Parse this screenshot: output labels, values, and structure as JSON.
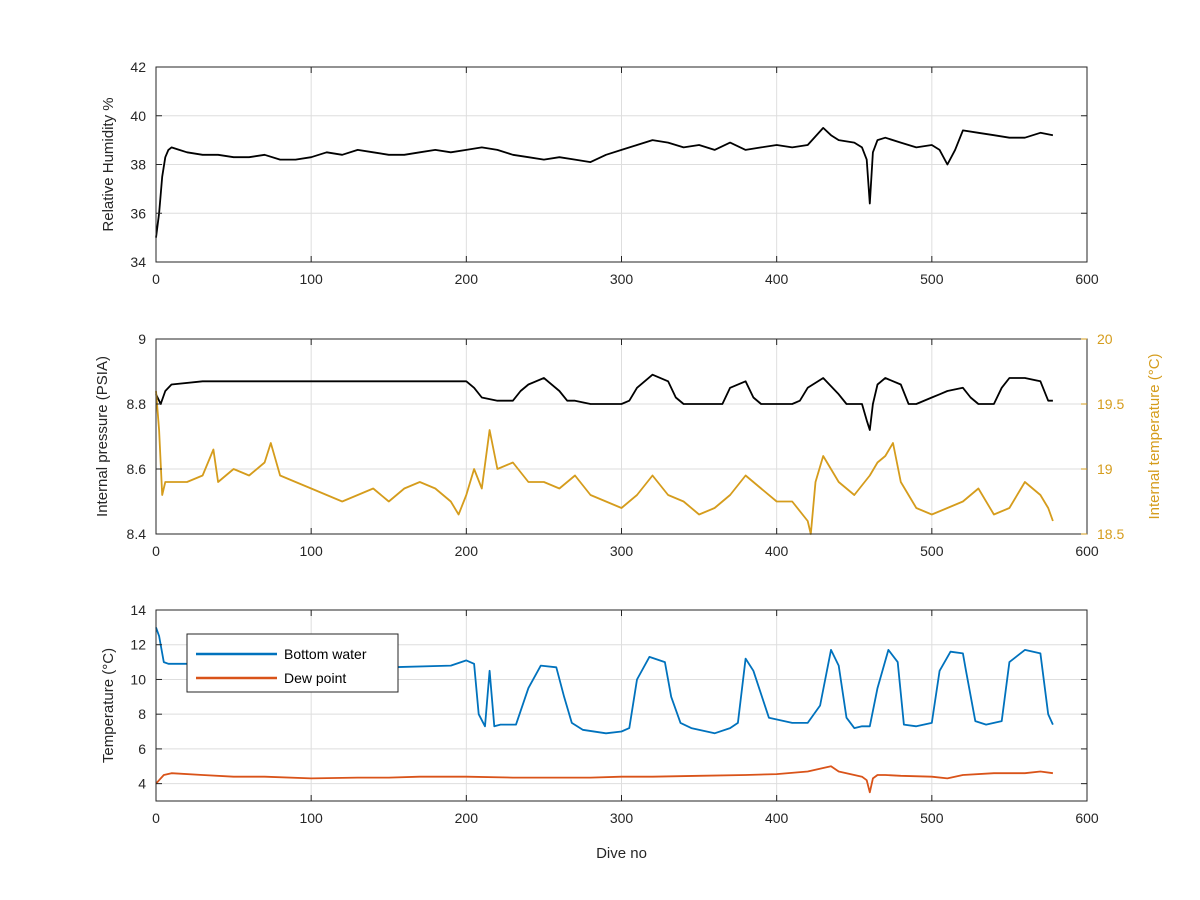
{
  "chart_data": [
    {
      "type": "line",
      "title": "",
      "xlabel": "",
      "ylabel": "Relative Humidity %",
      "xlim": [
        0,
        600
      ],
      "ylim": [
        34,
        42
      ],
      "xticks": [
        "0",
        "100",
        "200",
        "300",
        "400",
        "500",
        "600"
      ],
      "yticks": [
        "34",
        "36",
        "38",
        "40",
        "42"
      ],
      "grid": true,
      "series": [
        {
          "color": "#000000",
          "x": [
            0,
            2,
            4,
            6,
            8,
            10,
            15,
            20,
            30,
            40,
            50,
            60,
            70,
            80,
            90,
            100,
            110,
            120,
            130,
            140,
            150,
            160,
            170,
            180,
            190,
            200,
            210,
            220,
            230,
            240,
            250,
            260,
            270,
            280,
            290,
            300,
            310,
            320,
            330,
            340,
            350,
            360,
            370,
            380,
            390,
            400,
            410,
            420,
            430,
            435,
            440,
            450,
            455,
            458,
            460,
            462,
            465,
            470,
            480,
            490,
            500,
            505,
            510,
            515,
            520,
            530,
            540,
            550,
            560,
            570,
            578
          ],
          "y": [
            35.0,
            36.0,
            37.5,
            38.3,
            38.6,
            38.7,
            38.6,
            38.5,
            38.4,
            38.4,
            38.3,
            38.3,
            38.4,
            38.2,
            38.2,
            38.3,
            38.5,
            38.4,
            38.6,
            38.5,
            38.4,
            38.4,
            38.5,
            38.6,
            38.5,
            38.6,
            38.7,
            38.6,
            38.4,
            38.3,
            38.2,
            38.3,
            38.2,
            38.1,
            38.4,
            38.6,
            38.8,
            39.0,
            38.9,
            38.7,
            38.8,
            38.6,
            38.9,
            38.6,
            38.7,
            38.8,
            38.7,
            38.8,
            39.5,
            39.2,
            39.0,
            38.9,
            38.7,
            38.2,
            36.4,
            38.5,
            39.0,
            39.1,
            38.9,
            38.7,
            38.8,
            38.6,
            38.0,
            38.6,
            39.4,
            39.3,
            39.2,
            39.1,
            39.1,
            39.3,
            39.2
          ]
        }
      ]
    },
    {
      "type": "line",
      "title": "",
      "xlabel": "",
      "ylabel": "Internal pressure (PSIA)",
      "ylabel_right": "Internal temperature (°C)",
      "xlim": [
        0,
        600
      ],
      "ylim": [
        8.4,
        9.0
      ],
      "ylim_right": [
        18.5,
        20.0
      ],
      "xticks": [
        "0",
        "100",
        "200",
        "300",
        "400",
        "500",
        "600"
      ],
      "yticks": [
        "8.4",
        "8.6",
        "8.8",
        "9"
      ],
      "yticks_right": [
        "18.5",
        "19",
        "19.5",
        "20"
      ],
      "grid": true,
      "series": [
        {
          "axis": "left",
          "color": "#000000",
          "x": [
            0,
            3,
            6,
            10,
            30,
            50,
            70,
            90,
            110,
            130,
            150,
            170,
            190,
            200,
            205,
            210,
            220,
            230,
            235,
            240,
            250,
            260,
            265,
            270,
            280,
            290,
            300,
            305,
            310,
            320,
            330,
            335,
            340,
            350,
            360,
            365,
            370,
            380,
            385,
            390,
            400,
            410,
            415,
            420,
            430,
            440,
            445,
            450,
            455,
            458,
            460,
            462,
            465,
            470,
            480,
            485,
            490,
            500,
            505,
            510,
            520,
            525,
            530,
            540,
            545,
            550,
            560,
            570,
            575,
            578
          ],
          "y": [
            8.83,
            8.8,
            8.84,
            8.86,
            8.87,
            8.87,
            8.87,
            8.87,
            8.87,
            8.87,
            8.87,
            8.87,
            8.87,
            8.87,
            8.85,
            8.82,
            8.81,
            8.81,
            8.84,
            8.86,
            8.88,
            8.84,
            8.81,
            8.81,
            8.8,
            8.8,
            8.8,
            8.81,
            8.85,
            8.89,
            8.87,
            8.82,
            8.8,
            8.8,
            8.8,
            8.8,
            8.85,
            8.87,
            8.82,
            8.8,
            8.8,
            8.8,
            8.81,
            8.85,
            8.88,
            8.83,
            8.8,
            8.8,
            8.8,
            8.75,
            8.72,
            8.8,
            8.86,
            8.88,
            8.86,
            8.8,
            8.8,
            8.82,
            8.83,
            8.84,
            8.85,
            8.82,
            8.8,
            8.8,
            8.85,
            8.88,
            8.88,
            8.87,
            8.81,
            8.81
          ]
        },
        {
          "axis": "right",
          "color": "#d59c1c",
          "x": [
            0,
            2,
            4,
            6,
            10,
            20,
            30,
            37,
            40,
            50,
            60,
            70,
            74,
            80,
            90,
            100,
            110,
            120,
            130,
            140,
            150,
            160,
            170,
            180,
            190,
            195,
            200,
            205,
            210,
            215,
            220,
            230,
            240,
            250,
            260,
            270,
            280,
            290,
            300,
            310,
            320,
            330,
            340,
            350,
            360,
            370,
            380,
            390,
            400,
            410,
            420,
            422,
            425,
            430,
            440,
            450,
            460,
            465,
            470,
            475,
            480,
            490,
            500,
            510,
            520,
            530,
            540,
            550,
            560,
            570,
            575,
            578
          ],
          "y": [
            19.6,
            19.3,
            18.8,
            18.9,
            18.9,
            18.9,
            18.95,
            19.15,
            18.9,
            19.0,
            18.95,
            19.05,
            19.2,
            18.95,
            18.9,
            18.85,
            18.8,
            18.75,
            18.8,
            18.85,
            18.75,
            18.85,
            18.9,
            18.85,
            18.75,
            18.65,
            18.8,
            19.0,
            18.85,
            19.3,
            19.0,
            19.05,
            18.9,
            18.9,
            18.85,
            18.95,
            18.8,
            18.75,
            18.7,
            18.8,
            18.95,
            18.8,
            18.75,
            18.65,
            18.7,
            18.8,
            18.95,
            18.85,
            18.75,
            18.75,
            18.6,
            18.5,
            18.9,
            19.1,
            18.9,
            18.8,
            18.95,
            19.05,
            19.1,
            19.2,
            18.9,
            18.7,
            18.65,
            18.7,
            18.75,
            18.85,
            18.65,
            18.7,
            18.9,
            18.8,
            18.7,
            18.6
          ]
        }
      ]
    },
    {
      "type": "line",
      "title": "",
      "xlabel": "Dive no",
      "ylabel": "Temperature (°C)",
      "xlim": [
        0,
        600
      ],
      "ylim": [
        3,
        14
      ],
      "xticks": [
        "0",
        "100",
        "200",
        "300",
        "400",
        "500",
        "600"
      ],
      "yticks": [
        "4",
        "6",
        "8",
        "10",
        "12",
        "14"
      ],
      "grid": true,
      "legend": "top-left",
      "series": [
        {
          "name": "Bottom water",
          "color": "#0072bd",
          "x": [
            0,
            2,
            5,
            8,
            20,
            60,
            100,
            150,
            190,
            200,
            205,
            208,
            212,
            215,
            218,
            222,
            232,
            240,
            248,
            258,
            263,
            268,
            275,
            290,
            300,
            305,
            310,
            318,
            328,
            332,
            338,
            345,
            360,
            370,
            375,
            380,
            385,
            395,
            410,
            420,
            428,
            435,
            440,
            445,
            450,
            455,
            460,
            465,
            472,
            478,
            482,
            490,
            500,
            505,
            512,
            520,
            522,
            528,
            535,
            545,
            550,
            560,
            570,
            575,
            578
          ],
          "y": [
            13.0,
            12.5,
            11.0,
            10.9,
            10.9,
            10.8,
            10.8,
            10.7,
            10.8,
            11.1,
            10.9,
            8.0,
            7.3,
            10.5,
            7.3,
            7.4,
            7.4,
            9.5,
            10.8,
            10.7,
            9.0,
            7.5,
            7.1,
            6.9,
            7.0,
            7.2,
            10.0,
            11.3,
            11.0,
            9.0,
            7.5,
            7.2,
            6.9,
            7.2,
            7.5,
            11.2,
            10.5,
            7.8,
            7.5,
            7.5,
            8.5,
            11.7,
            10.8,
            7.8,
            7.2,
            7.3,
            7.3,
            9.5,
            11.7,
            11.0,
            7.4,
            7.3,
            7.5,
            10.5,
            11.6,
            11.5,
            10.5,
            7.6,
            7.4,
            7.6,
            11.0,
            11.7,
            11.5,
            8.0,
            7.4
          ]
        },
        {
          "name": "Dew point",
          "color": "#d95319",
          "x": [
            0,
            2,
            5,
            10,
            30,
            50,
            70,
            100,
            130,
            150,
            170,
            200,
            230,
            250,
            280,
            300,
            320,
            350,
            380,
            400,
            420,
            430,
            435,
            440,
            450,
            455,
            458,
            460,
            462,
            465,
            470,
            480,
            500,
            510,
            520,
            540,
            560,
            570,
            578
          ],
          "y": [
            4.0,
            4.2,
            4.5,
            4.6,
            4.5,
            4.4,
            4.4,
            4.3,
            4.35,
            4.35,
            4.4,
            4.4,
            4.35,
            4.35,
            4.35,
            4.4,
            4.4,
            4.45,
            4.5,
            4.55,
            4.7,
            4.9,
            5.0,
            4.7,
            4.5,
            4.4,
            4.2,
            3.5,
            4.3,
            4.5,
            4.5,
            4.45,
            4.4,
            4.3,
            4.5,
            4.6,
            4.6,
            4.7,
            4.6
          ]
        }
      ]
    }
  ]
}
